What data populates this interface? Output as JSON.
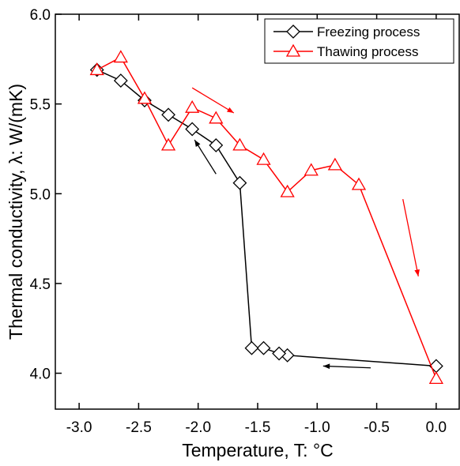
{
  "chart_data": {
    "type": "line",
    "xlabel": "Temperature, T: °C",
    "ylabel": "Thermal conductivity, λ: W/(mK)",
    "xlim": [
      -3.2,
      0.2
    ],
    "ylim": [
      3.8,
      6.0
    ],
    "xticks": [
      -3.0,
      -2.5,
      -2.0,
      -1.5,
      -1.0,
      -0.5,
      0.0
    ],
    "xtick_labels": [
      "-3.0",
      "-2.5",
      "-2.0",
      "-1.5",
      "-1.0",
      "-0.5",
      "0.0"
    ],
    "yticks": [
      4.0,
      4.5,
      5.0,
      5.5,
      6.0
    ],
    "ytick_labels": [
      "4.0",
      "4.5",
      "5.0",
      "5.5",
      "6.0"
    ],
    "grid": false,
    "legend_position": "top-right",
    "series": [
      {
        "name": "Freezing process",
        "color": "#000000",
        "marker": "diamond",
        "points": [
          {
            "x": 0.0,
            "y": 4.04
          },
          {
            "x": -1.25,
            "y": 4.1
          },
          {
            "x": -1.32,
            "y": 4.11
          },
          {
            "x": -1.45,
            "y": 4.14
          },
          {
            "x": -1.55,
            "y": 4.14
          },
          {
            "x": -1.65,
            "y": 5.06
          },
          {
            "x": -1.85,
            "y": 5.27
          },
          {
            "x": -2.05,
            "y": 5.36
          },
          {
            "x": -2.25,
            "y": 5.44
          },
          {
            "x": -2.45,
            "y": 5.52
          },
          {
            "x": -2.65,
            "y": 5.63
          },
          {
            "x": -2.85,
            "y": 5.69
          }
        ]
      },
      {
        "name": "Thawing process",
        "color": "#ff0000",
        "marker": "triangle",
        "points": [
          {
            "x": -2.85,
            "y": 5.69
          },
          {
            "x": -2.65,
            "y": 5.76
          },
          {
            "x": -2.45,
            "y": 5.53
          },
          {
            "x": -2.25,
            "y": 5.27
          },
          {
            "x": -2.05,
            "y": 5.48
          },
          {
            "x": -1.85,
            "y": 5.42
          },
          {
            "x": -1.65,
            "y": 5.27
          },
          {
            "x": -1.45,
            "y": 5.19
          },
          {
            "x": -1.25,
            "y": 5.01
          },
          {
            "x": -1.05,
            "y": 5.13
          },
          {
            "x": -0.85,
            "y": 5.16
          },
          {
            "x": -0.65,
            "y": 5.05
          },
          {
            "x": 0.0,
            "y": 3.97
          }
        ]
      }
    ],
    "annotations": [
      {
        "kind": "arrow",
        "color": "#ff0000",
        "from": {
          "x": -2.05,
          "y": 5.59
        },
        "to": {
          "x": -1.7,
          "y": 5.45
        }
      },
      {
        "kind": "arrow",
        "color": "#ff0000",
        "from": {
          "x": -0.28,
          "y": 4.97
        },
        "to": {
          "x": -0.15,
          "y": 4.54
        }
      },
      {
        "kind": "arrow",
        "color": "#000000",
        "from": {
          "x": -1.85,
          "y": 5.11
        },
        "to": {
          "x": -2.03,
          "y": 5.3
        }
      },
      {
        "kind": "arrow",
        "color": "#000000",
        "from": {
          "x": -0.55,
          "y": 4.03
        },
        "to": {
          "x": -0.95,
          "y": 4.04
        }
      }
    ]
  }
}
